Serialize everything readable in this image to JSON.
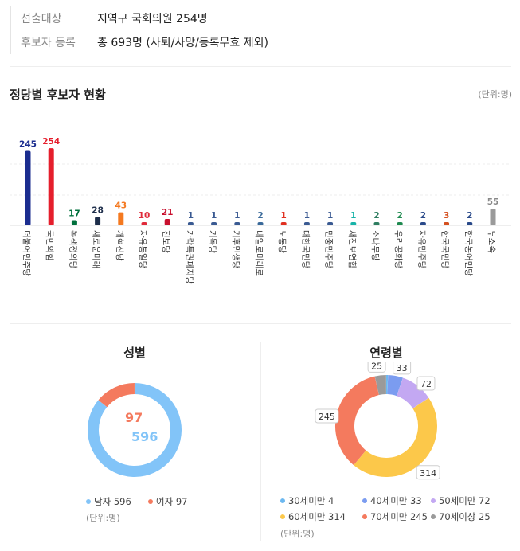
{
  "info": {
    "rows": [
      {
        "label": "선출대상",
        "value": "지역구 국회의원 254명"
      },
      {
        "label": "후보자 등록",
        "value": "총 693명 (사퇴/사망/등록무효 제외)"
      }
    ]
  },
  "party_section": {
    "title": "정당별 후보자 현황",
    "unit": "(단위:명)"
  },
  "chart_data": [
    {
      "type": "bar",
      "categories": [
        "더불어민주당",
        "국민의힘",
        "녹색정의당",
        "새로운미래",
        "개혁신당",
        "자유통일당",
        "진보당",
        "가락특권폐지당",
        "기독당",
        "기후민생당",
        "내일로미래로",
        "노동당",
        "대한국민당",
        "민중민주당",
        "새진보연합",
        "소나무당",
        "우리공화당",
        "자유민주당",
        "한국국민당",
        "한국농어민당",
        "무소속"
      ],
      "values": [
        245,
        254,
        17,
        28,
        43,
        10,
        21,
        1,
        1,
        1,
        2,
        1,
        1,
        1,
        1,
        2,
        2,
        2,
        3,
        2,
        55
      ],
      "colors": [
        "#1b2d8f",
        "#e51e2c",
        "#00703c",
        "#1d2d4a",
        "#f47920",
        "#e02a3a",
        "#c8102e",
        "#3a5a92",
        "#3a5a92",
        "#3a5a92",
        "#3a6a9a",
        "#e03020",
        "#3a5a92",
        "#3a5a92",
        "#17b3a8",
        "#2e7d60",
        "#1f8a50",
        "#2a4a8a",
        "#d45020",
        "#2a4a8a",
        "#9a9a9a"
      ],
      "label_colors": [
        "#1b2d8f",
        "#e51e2c",
        "#00703c",
        "#1d2d4a",
        "#f47920",
        "#e02a3a",
        "#c8102e",
        "#3a5a92",
        "#3a5a92",
        "#3a5a92",
        "#3a6a9a",
        "#e03020",
        "#3a5a92",
        "#3a5a92",
        "#17b3a8",
        "#2e7d60",
        "#1f8a50",
        "#2a4a8a",
        "#d45020",
        "#2a4a8a",
        "#888888"
      ],
      "ylim": [
        0,
        270
      ]
    },
    {
      "type": "pie",
      "title": "성별",
      "labels": [
        "남자",
        "여자"
      ],
      "values": [
        596,
        97
      ],
      "colors": [
        "#82c4f8",
        "#f47a5e"
      ],
      "unit": "(단위:명)"
    },
    {
      "type": "pie",
      "title": "연령별",
      "labels": [
        "30세미만",
        "40세미만",
        "50세미만",
        "60세미만",
        "70세미만",
        "70세이상"
      ],
      "values": [
        4,
        33,
        72,
        314,
        245,
        25
      ],
      "colors": [
        "#6cb8f0",
        "#7b9cf0",
        "#c3a8f2",
        "#fcc84a",
        "#f47a5e",
        "#9a9a9a"
      ],
      "unit": "(단위:명)"
    }
  ]
}
